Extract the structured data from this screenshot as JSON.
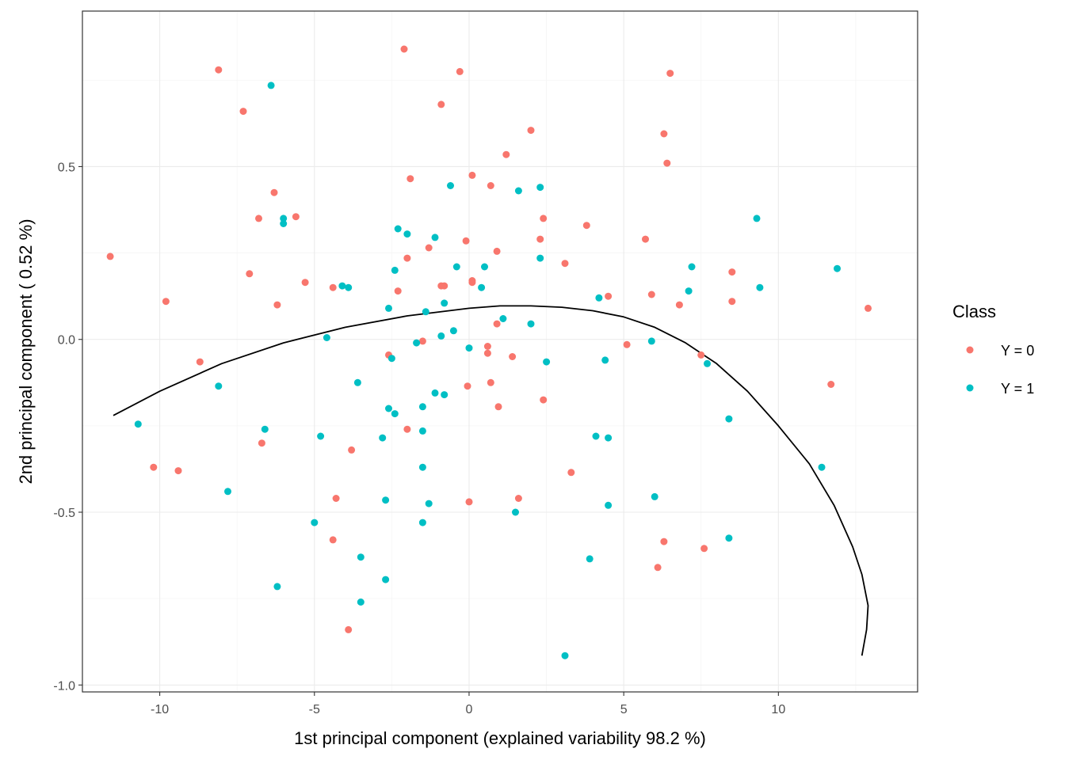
{
  "chart_data": {
    "type": "scatter",
    "title": "",
    "xlabel": "1st principal component (explained variability 98.2 %)",
    "ylabel": "2nd principal component ( 0.52 %)",
    "xlim": [
      -12.5,
      14.5
    ],
    "ylim": [
      -1.02,
      0.95
    ],
    "x_ticks": [
      -10,
      -5,
      0,
      5,
      10
    ],
    "x_tick_labels": [
      "-10",
      "-5",
      "0",
      "5",
      "10"
    ],
    "y_ticks": [
      -1.0,
      -0.5,
      0.0,
      0.5
    ],
    "y_tick_labels": [
      "-1.0",
      "-0.5",
      "0.0",
      "0.5"
    ],
    "grid": true,
    "legend": {
      "title": "Class",
      "position": "right",
      "entries": [
        {
          "label": "Y = 0",
          "color": "#F8766D"
        },
        {
          "label": "Y = 1",
          "color": "#00BFC4"
        }
      ]
    },
    "series": [
      {
        "name": "Y = 0",
        "color": "#F8766D",
        "points": [
          [
            -11.6,
            0.24
          ],
          [
            -9.8,
            0.11
          ],
          [
            -8.7,
            -0.065
          ],
          [
            -10.2,
            -0.37
          ],
          [
            -9.4,
            -0.38
          ],
          [
            -8.1,
            0.78
          ],
          [
            -7.3,
            0.66
          ],
          [
            -6.8,
            0.35
          ],
          [
            -7.1,
            0.19
          ],
          [
            -6.3,
            0.425
          ],
          [
            -5.6,
            0.355
          ],
          [
            -5.3,
            0.165
          ],
          [
            -6.2,
            0.1
          ],
          [
            -6.7,
            -0.3
          ],
          [
            -4.4,
            0.15
          ],
          [
            -3.8,
            -0.32
          ],
          [
            -4.3,
            -0.46
          ],
          [
            -4.4,
            -0.58
          ],
          [
            -3.9,
            -0.84
          ],
          [
            -2.1,
            0.84
          ],
          [
            -0.3,
            0.775
          ],
          [
            -0.9,
            0.68
          ],
          [
            -1.9,
            0.465
          ],
          [
            -2.0,
            0.235
          ],
          [
            -2.3,
            0.14
          ],
          [
            -1.3,
            0.265
          ],
          [
            -0.9,
            0.155
          ],
          [
            -0.8,
            0.155
          ],
          [
            -2.6,
            -0.045
          ],
          [
            -1.5,
            -0.005
          ],
          [
            -2.0,
            -0.26
          ],
          [
            -0.1,
            0.285
          ],
          [
            0.1,
            0.475
          ],
          [
            0.1,
            0.17
          ],
          [
            0.1,
            0.165
          ],
          [
            0.7,
            0.445
          ],
          [
            0.9,
            0.255
          ],
          [
            0.9,
            0.045
          ],
          [
            0.6,
            -0.04
          ],
          [
            0.6,
            -0.02
          ],
          [
            -0.05,
            -0.135
          ],
          [
            0.7,
            -0.125
          ],
          [
            0.95,
            -0.195
          ],
          [
            1.4,
            -0.05
          ],
          [
            0.0,
            -0.47
          ],
          [
            1.6,
            -0.46
          ],
          [
            1.2,
            0.535
          ],
          [
            2.0,
            0.605
          ],
          [
            2.3,
            0.29
          ],
          [
            2.4,
            0.35
          ],
          [
            2.4,
            -0.175
          ],
          [
            3.1,
            0.22
          ],
          [
            3.3,
            -0.385
          ],
          [
            3.8,
            0.33
          ],
          [
            4.5,
            0.125
          ],
          [
            5.1,
            -0.015
          ],
          [
            5.7,
            0.29
          ],
          [
            5.9,
            0.13
          ],
          [
            6.3,
            0.595
          ],
          [
            6.4,
            0.51
          ],
          [
            6.5,
            0.77
          ],
          [
            6.8,
            0.1
          ],
          [
            6.1,
            -0.66
          ],
          [
            6.3,
            -0.585
          ],
          [
            7.6,
            -0.605
          ],
          [
            7.5,
            -0.045
          ],
          [
            8.5,
            0.195
          ],
          [
            8.5,
            0.11
          ],
          [
            11.7,
            -0.13
          ],
          [
            12.9,
            0.09
          ]
        ]
      },
      {
        "name": "Y = 1",
        "color": "#00BFC4",
        "points": [
          [
            -10.7,
            -0.245
          ],
          [
            -8.1,
            -0.135
          ],
          [
            -7.8,
            -0.44
          ],
          [
            -6.4,
            0.735
          ],
          [
            -6.0,
            0.35
          ],
          [
            -6.0,
            0.335
          ],
          [
            -6.6,
            -0.26
          ],
          [
            -6.2,
            -0.715
          ],
          [
            -4.8,
            -0.28
          ],
          [
            -5.0,
            -0.53
          ],
          [
            -4.6,
            0.005
          ],
          [
            -4.1,
            0.155
          ],
          [
            -3.9,
            0.15
          ],
          [
            -3.6,
            -0.125
          ],
          [
            -3.5,
            -0.63
          ],
          [
            -3.5,
            -0.76
          ],
          [
            -2.6,
            0.09
          ],
          [
            -2.4,
            0.2
          ],
          [
            -2.3,
            0.32
          ],
          [
            -2.0,
            0.305
          ],
          [
            -2.5,
            -0.055
          ],
          [
            -2.6,
            -0.2
          ],
          [
            -2.4,
            -0.215
          ],
          [
            -2.8,
            -0.285
          ],
          [
            -2.7,
            -0.465
          ],
          [
            -2.7,
            -0.695
          ],
          [
            -1.1,
            0.295
          ],
          [
            -1.4,
            0.08
          ],
          [
            -1.7,
            -0.01
          ],
          [
            -1.5,
            -0.195
          ],
          [
            -1.5,
            -0.265
          ],
          [
            -1.5,
            -0.37
          ],
          [
            -1.3,
            -0.475
          ],
          [
            -1.5,
            -0.53
          ],
          [
            -0.6,
            0.445
          ],
          [
            -0.4,
            0.21
          ],
          [
            -0.8,
            0.105
          ],
          [
            -0.9,
            0.01
          ],
          [
            -0.5,
            0.025
          ],
          [
            -1.1,
            -0.155
          ],
          [
            -0.8,
            -0.16
          ],
          [
            0.0,
            -0.025
          ],
          [
            0.4,
            0.15
          ],
          [
            0.5,
            0.21
          ],
          [
            1.1,
            0.06
          ],
          [
            1.6,
            0.43
          ],
          [
            2.3,
            0.44
          ],
          [
            2.3,
            0.235
          ],
          [
            2.0,
            0.045
          ],
          [
            2.5,
            -0.065
          ],
          [
            1.5,
            -0.5
          ],
          [
            4.2,
            0.12
          ],
          [
            4.4,
            -0.06
          ],
          [
            4.1,
            -0.28
          ],
          [
            4.5,
            -0.285
          ],
          [
            4.5,
            -0.48
          ],
          [
            3.9,
            -0.635
          ],
          [
            3.1,
            -0.915
          ],
          [
            5.9,
            -0.005
          ],
          [
            6.0,
            -0.455
          ],
          [
            7.1,
            0.14
          ],
          [
            7.2,
            0.21
          ],
          [
            7.7,
            -0.07
          ],
          [
            8.4,
            -0.23
          ],
          [
            8.4,
            -0.575
          ],
          [
            9.3,
            0.35
          ],
          [
            9.4,
            0.15
          ],
          [
            11.4,
            -0.37
          ],
          [
            11.9,
            0.205
          ]
        ]
      },
      {
        "name": "curve",
        "color": "#000000",
        "points": [
          [
            -11.5,
            -0.22
          ],
          [
            -10.0,
            -0.15
          ],
          [
            -8.0,
            -0.07
          ],
          [
            -6.0,
            -0.01
          ],
          [
            -4.0,
            0.035
          ],
          [
            -2.0,
            0.068
          ],
          [
            0.0,
            0.09
          ],
          [
            1.0,
            0.097
          ],
          [
            2.0,
            0.097
          ],
          [
            3.0,
            0.093
          ],
          [
            4.0,
            0.083
          ],
          [
            5.0,
            0.065
          ],
          [
            6.0,
            0.035
          ],
          [
            7.0,
            -0.01
          ],
          [
            8.0,
            -0.07
          ],
          [
            9.0,
            -0.15
          ],
          [
            10.0,
            -0.25
          ],
          [
            11.0,
            -0.36
          ],
          [
            11.8,
            -0.48
          ],
          [
            12.4,
            -0.6
          ],
          [
            12.7,
            -0.68
          ],
          [
            12.9,
            -0.77
          ],
          [
            12.85,
            -0.84
          ],
          [
            12.7,
            -0.915
          ]
        ]
      }
    ]
  }
}
